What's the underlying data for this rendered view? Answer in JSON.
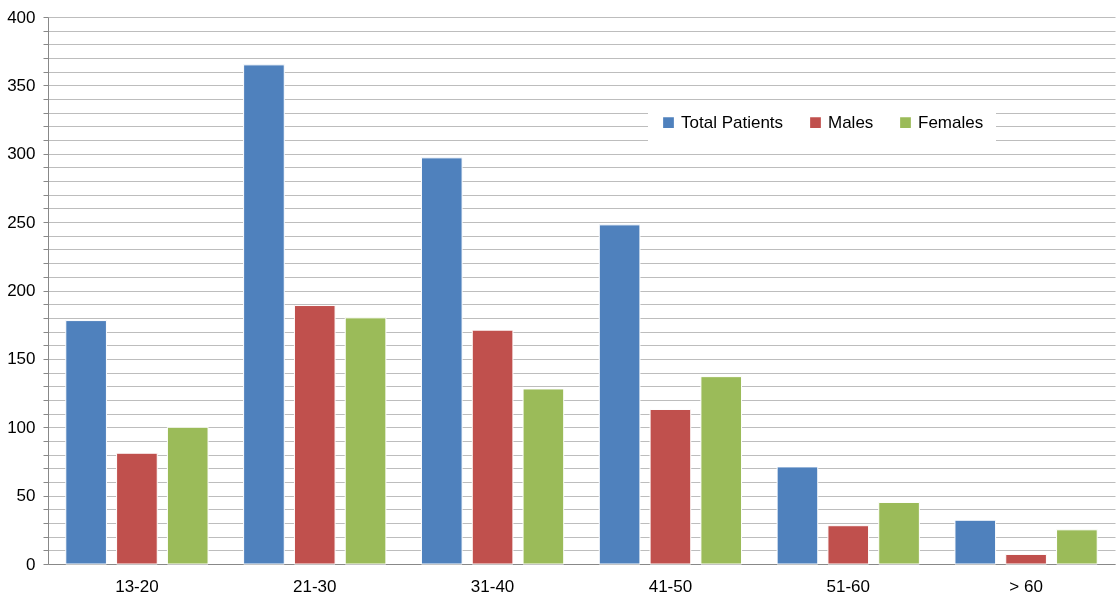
{
  "chart_data": {
    "type": "bar",
    "categories": [
      "13-20",
      "21-30",
      "31-40",
      "41-50",
      "51-60",
      "> 60"
    ],
    "series": [
      {
        "name": "Total Patients",
        "color": "#4f81bd",
        "values": [
          178,
          365,
          297,
          248,
          71,
          32
        ]
      },
      {
        "name": "Males",
        "color": "#c0504d",
        "values": [
          81,
          189,
          171,
          113,
          28,
          7
        ]
      },
      {
        "name": "Females",
        "color": "#9bbb59",
        "values": [
          100,
          180,
          128,
          137,
          45,
          25
        ]
      }
    ],
    "ylim": [
      0,
      400
    ],
    "yticks": [
      0,
      {
        "value": 10,
        "label": null
      },
      {
        "value": 20,
        "label": null
      },
      {
        "value": 30,
        "label": null
      },
      {
        "value": 40,
        "label": null
      },
      50,
      {
        "value": 60,
        "label": null
      },
      {
        "value": 70,
        "label": null
      },
      {
        "value": 80,
        "label": null
      },
      {
        "value": 90,
        "label": null
      },
      100,
      {
        "value": 110,
        "label": null
      },
      {
        "value": 120,
        "label": null
      },
      {
        "value": 130,
        "label": null
      },
      {
        "value": 140,
        "label": null
      },
      150,
      {
        "value": 160,
        "label": null
      },
      {
        "value": 170,
        "label": null
      },
      {
        "value": 180,
        "label": null
      },
      {
        "value": 190,
        "label": null
      },
      200,
      {
        "value": 210,
        "label": null
      },
      {
        "value": 220,
        "label": null
      },
      {
        "value": 230,
        "label": null
      },
      {
        "value": 240,
        "label": null
      },
      250,
      {
        "value": 260,
        "label": null
      },
      {
        "value": 270,
        "label": null
      },
      {
        "value": 280,
        "label": null
      },
      {
        "value": 290,
        "label": null
      },
      300,
      {
        "value": 310,
        "label": null
      },
      {
        "value": 320,
        "label": null
      },
      {
        "value": 330,
        "label": null
      },
      {
        "value": 340,
        "label": null
      },
      350,
      {
        "value": 360,
        "label": null
      },
      {
        "value": 370,
        "label": null
      },
      {
        "value": 380,
        "label": null
      },
      {
        "value": 390,
        "label": null
      },
      400
    ],
    "grid": true,
    "legend": "top right"
  }
}
